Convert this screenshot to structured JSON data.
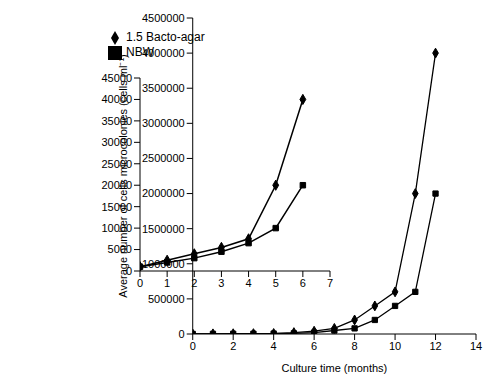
{
  "chart_data": [
    {
      "type": "line",
      "x_label": "Culture time (months)",
      "y_label": "Average number of cells microcolonies (cells ml⁻¹)",
      "x": [
        0,
        1,
        2,
        3,
        4,
        5,
        6,
        7,
        8,
        9,
        10,
        11,
        12
      ],
      "series": [
        {
          "name": "NBW",
          "color": "#000000",
          "marker": "square",
          "values": [
            1000,
            2000,
            3000,
            4500,
            6500,
            10000,
            20000,
            50000,
            80000,
            200000,
            400000,
            600000,
            2000000
          ]
        },
        {
          "name": "1.5 Bacto-agar",
          "color": "#000000",
          "marker": "diamond",
          "values": [
            1000,
            2500,
            4000,
            5500,
            7500,
            20000,
            40000,
            80000,
            200000,
            400000,
            600000,
            2000000,
            4000000
          ]
        }
      ],
      "xlim": [
        0,
        14
      ],
      "xticks": [
        0,
        2,
        4,
        6,
        8,
        10,
        12,
        14
      ],
      "ylim": [
        0,
        4500000
      ],
      "yticks": [
        0,
        500000,
        1000000,
        1500000,
        2000000,
        2500000,
        3000000,
        3500000,
        4000000,
        4500000
      ],
      "legend": "upper left",
      "grid": false
    },
    {
      "type": "line",
      "x": [
        0,
        1,
        2,
        3,
        4,
        5,
        6
      ],
      "series": [
        {
          "name": "NBW",
          "color": "#000000",
          "marker": "square",
          "values": [
            1000,
            2000,
            3000,
            4500,
            6500,
            10000,
            20000
          ]
        },
        {
          "name": "1.5 Bacto-agar",
          "color": "#000000",
          "marker": "diamond",
          "values": [
            1000,
            2500,
            4000,
            5500,
            7500,
            20000,
            40000
          ]
        }
      ],
      "xlim": [
        0,
        7
      ],
      "xticks": [
        0,
        1,
        2,
        3,
        4,
        5,
        6,
        7
      ],
      "ylim": [
        0,
        45000
      ],
      "yticks": [
        0,
        5000,
        10000,
        15000,
        20000,
        25000,
        30000,
        35000,
        40000,
        45000
      ],
      "grid": false
    }
  ]
}
